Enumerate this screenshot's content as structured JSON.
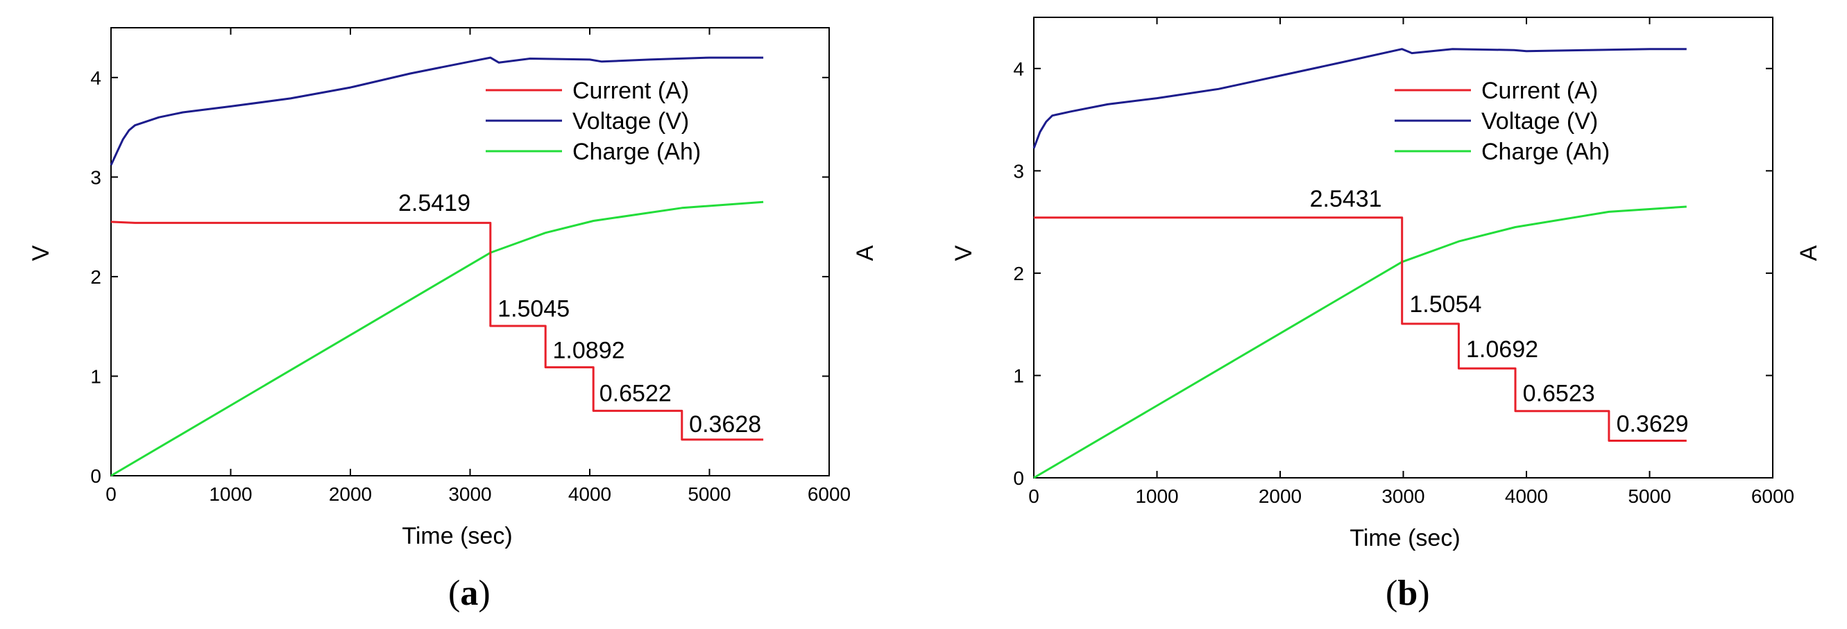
{
  "colors": {
    "current": "#e8202a",
    "voltage": "#1c1c8c",
    "charge": "#22dd3a",
    "axis": "#000000",
    "tick_blue": "#1a2bc8"
  },
  "chart_data": [
    {
      "type": "line",
      "caption_open": "(",
      "caption_letter": "a",
      "caption_close": ")",
      "xlabel": "Time (sec)",
      "ylabel_left": "V",
      "ylabel_right": "A",
      "xlim": [
        0,
        6000
      ],
      "ylim": [
        0,
        4.5
      ],
      "x_ticks": [
        "0",
        "1000",
        "2000",
        "3000",
        "4000",
        "5000",
        "6000"
      ],
      "y_ticks": [
        "0",
        "1",
        "2",
        "3",
        "4"
      ],
      "legend_position": "top-right",
      "series": [
        {
          "name": "Current (A)",
          "color_key": "current",
          "points": [
            [
              0,
              2.55
            ],
            [
              200,
              2.54
            ],
            [
              3170,
              2.54
            ],
            [
              3170,
              1.5045
            ],
            [
              3630,
              1.5045
            ],
            [
              3630,
              1.0892
            ],
            [
              4030,
              1.0892
            ],
            [
              4030,
              0.6522
            ],
            [
              4770,
              0.6522
            ],
            [
              4770,
              0.3628
            ],
            [
              5450,
              0.3628
            ]
          ]
        },
        {
          "name": "Voltage (V)",
          "color_key": "voltage",
          "points": [
            [
              0,
              3.12
            ],
            [
              50,
              3.25
            ],
            [
              100,
              3.38
            ],
            [
              150,
              3.47
            ],
            [
              200,
              3.52
            ],
            [
              400,
              3.6
            ],
            [
              600,
              3.65
            ],
            [
              1000,
              3.71
            ],
            [
              1500,
              3.79
            ],
            [
              2000,
              3.9
            ],
            [
              2500,
              4.04
            ],
            [
              3000,
              4.16
            ],
            [
              3170,
              4.2
            ],
            [
              3240,
              4.15
            ],
            [
              3500,
              4.19
            ],
            [
              4000,
              4.18
            ],
            [
              4100,
              4.16
            ],
            [
              4500,
              4.18
            ],
            [
              5000,
              4.2
            ],
            [
              5450,
              4.2
            ]
          ]
        },
        {
          "name": "Charge (Ah)",
          "color_key": "charge",
          "points": [
            [
              0,
              0
            ],
            [
              3170,
              2.24
            ],
            [
              3630,
              2.44
            ],
            [
              4030,
              2.56
            ],
            [
              4770,
              2.69
            ],
            [
              5450,
              2.75
            ]
          ]
        }
      ],
      "annotations": [
        {
          "text": "2.5419",
          "x": 2400,
          "y": 2.66
        },
        {
          "text": "1.5045",
          "x": 3230,
          "y": 1.6
        },
        {
          "text": "1.0892",
          "x": 3690,
          "y": 1.18
        },
        {
          "text": "0.6522",
          "x": 4080,
          "y": 0.75
        },
        {
          "text": "0.3628",
          "x": 4830,
          "y": 0.44
        }
      ]
    },
    {
      "type": "line",
      "caption_open": "(",
      "caption_letter": "b",
      "caption_close": ")",
      "xlabel": "Time (sec)",
      "ylabel_left": "V",
      "ylabel_right": "A",
      "xlim": [
        0,
        6000
      ],
      "ylim": [
        0,
        4.5
      ],
      "x_ticks": [
        "0",
        "1000",
        "2000",
        "3000",
        "4000",
        "5000",
        "6000"
      ],
      "y_ticks": [
        "0",
        "1",
        "2",
        "3",
        "4"
      ],
      "legend_position": "top-right",
      "series": [
        {
          "name": "Current (A)",
          "color_key": "current",
          "points": [
            [
              0,
              2.5431
            ],
            [
              2990,
              2.5431
            ],
            [
              2990,
              1.5054
            ],
            [
              3450,
              1.5054
            ],
            [
              3450,
              1.0692
            ],
            [
              3910,
              1.0692
            ],
            [
              3910,
              0.6523
            ],
            [
              4670,
              0.6523
            ],
            [
              4670,
              0.3629
            ],
            [
              5300,
              0.3629
            ]
          ]
        },
        {
          "name": "Voltage (V)",
          "color_key": "voltage",
          "points": [
            [
              0,
              3.22
            ],
            [
              50,
              3.38
            ],
            [
              100,
              3.48
            ],
            [
              150,
              3.54
            ],
            [
              300,
              3.58
            ],
            [
              600,
              3.65
            ],
            [
              1000,
              3.71
            ],
            [
              1500,
              3.8
            ],
            [
              2000,
              3.93
            ],
            [
              2500,
              4.06
            ],
            [
              2990,
              4.19
            ],
            [
              3070,
              4.15
            ],
            [
              3400,
              4.19
            ],
            [
              3900,
              4.18
            ],
            [
              4000,
              4.17
            ],
            [
              4500,
              4.18
            ],
            [
              5000,
              4.19
            ],
            [
              5300,
              4.19
            ]
          ]
        },
        {
          "name": "Charge (Ah)",
          "color_key": "charge",
          "points": [
            [
              0,
              0
            ],
            [
              2990,
              2.11
            ],
            [
              3450,
              2.31
            ],
            [
              3910,
              2.45
            ],
            [
              4670,
              2.6
            ],
            [
              5300,
              2.65
            ]
          ]
        }
      ],
      "annotations": [
        {
          "text": "2.5431",
          "x": 2240,
          "y": 2.65
        },
        {
          "text": "1.5054",
          "x": 3050,
          "y": 1.62
        },
        {
          "text": "1.0692",
          "x": 3510,
          "y": 1.18
        },
        {
          "text": "0.6523",
          "x": 3970,
          "y": 0.75
        },
        {
          "text": "0.3629",
          "x": 4730,
          "y": 0.45
        }
      ]
    }
  ]
}
